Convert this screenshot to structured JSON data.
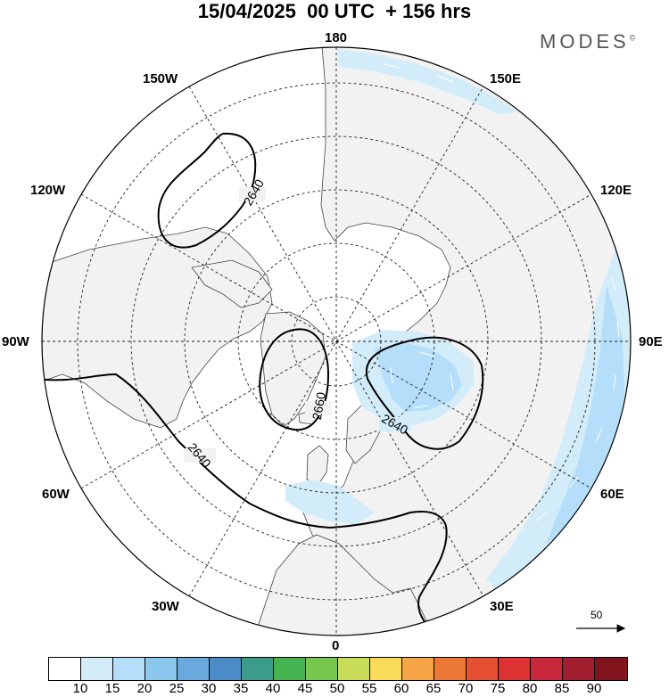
{
  "header": {
    "date": "15/04/2025",
    "run": "00 UTC",
    "lead": "+ 156 hrs"
  },
  "brand": {
    "name": "MODES",
    "mark": "©"
  },
  "map": {
    "projection": "north-polar-stereographic",
    "meridian_labels": {
      "top": "180",
      "bottom": "0",
      "left": "90W",
      "right": "90E",
      "upper_left_1": "150W",
      "upper_left_2": "120W",
      "lower_left_1": "60W",
      "lower_left_2": "30W",
      "upper_right_1": "150E",
      "upper_right_2": "120E",
      "lower_right_1": "60E",
      "lower_right_2": "30E"
    },
    "contour_labels": {
      "pacific_low": "2640",
      "polar_high": "2660",
      "european_low": "2640",
      "atlantic_ridge": "2640"
    },
    "colors": {
      "land": "#f2f2f2",
      "ocean": "#ffffff",
      "wind_15": "#d2ecfa",
      "wind_20": "#b4defa",
      "coast": "#444444",
      "grid": "#222222",
      "contour": "#000000"
    },
    "reference_vector": {
      "value": "50"
    }
  },
  "colorbar": {
    "colors": [
      "#ffffff",
      "#d2ecfa",
      "#b4defa",
      "#8cc8ee",
      "#69a9de",
      "#4b8cc8",
      "#3c9c8c",
      "#46b450",
      "#78c850",
      "#c8dc5a",
      "#fadc5a",
      "#f5a546",
      "#eb7837",
      "#e65032",
      "#dc3232",
      "#c8283c",
      "#a01e2d",
      "#82141e"
    ],
    "tick_labels": [
      "10",
      "15",
      "20",
      "25",
      "30",
      "35",
      "40",
      "45",
      "50",
      "55",
      "60",
      "65",
      "70",
      "75",
      "80",
      "85",
      "90"
    ]
  }
}
